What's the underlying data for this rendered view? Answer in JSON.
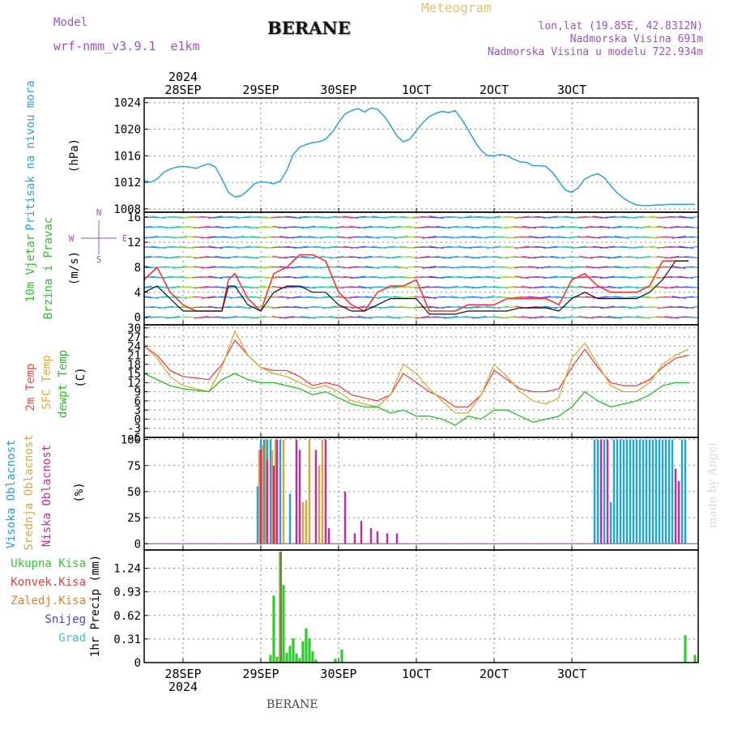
{
  "header": {
    "model_label": "Model",
    "model_name": "wrf-nmm_v3.9.1  e1km",
    "station": "BERANE",
    "product": "Meteogram",
    "lonlat": "lon,lat (19.85E, 42.8312N)",
    "elevation": "Nadmorska Visina 691m",
    "model_elevation": "Nadmorska Visina u modelu 722.934m",
    "credit": "made by Angel",
    "footer_station": "BERANE"
  },
  "colors": {
    "pressure": "#2aa3e4",
    "gust": "#ff3030",
    "wind_speed": "#111111",
    "t2m": "#ee4444",
    "tsfc": "#e0a838",
    "dewpt": "#22c422",
    "cloud_high": "#1ea1e6",
    "cloud_mid": "#d9a640",
    "cloud_low": "#cc2a9a",
    "rain_total": "#2ecc2e",
    "rain_conv": "#ee3a3a",
    "rain_strat": "#f07a2a",
    "snow": "#4444dd",
    "grad": "#33cccc"
  },
  "time_axis": {
    "top_year": "2024",
    "bottom_year": "2024",
    "ticks": [
      "28SEP",
      "29SEP",
      "30SEP",
      "1OCT",
      "2OCT",
      "3OCT"
    ]
  },
  "chart_data": [
    {
      "type": "line",
      "panel": "pressure",
      "ylabel": [
        "Pritisak na nivou mora",
        "(hPa)"
      ],
      "yticks": [
        1008,
        1012,
        1016,
        1020,
        1024
      ],
      "ylim": [
        1007.5,
        1024.7
      ],
      "x_unit": "hours from 27SEP 12UTC",
      "x": [
        0,
        2,
        4,
        6,
        8,
        10,
        12,
        14,
        16,
        18,
        20,
        22,
        24,
        26,
        28,
        30,
        32,
        34,
        36,
        38,
        40,
        42,
        44,
        46,
        48,
        50,
        52,
        54,
        56,
        58,
        60,
        62,
        64,
        66,
        68,
        70,
        72,
        74,
        76,
        78,
        80,
        82,
        84,
        86,
        88,
        90,
        92,
        94,
        96,
        98,
        100,
        102,
        104,
        106,
        108,
        110,
        112,
        114,
        116,
        118,
        120,
        122,
        124,
        126,
        128,
        130,
        132,
        134,
        136,
        138,
        140,
        142,
        144,
        146,
        148,
        150,
        152,
        154,
        156,
        158,
        160,
        162,
        164,
        166,
        168,
        170
      ],
      "series": [
        {
          "values": [
            1012.3,
            1012.0,
            1012.5,
            1013.5,
            1014.0,
            1014.3,
            1014.4,
            1014.3,
            1014.1,
            1014.5,
            1014.8,
            1014.3,
            1012.5,
            1010.5,
            1009.8,
            1010.0,
            1010.8,
            1011.8,
            1012.1,
            1012.0,
            1011.8,
            1012.2,
            1013.8,
            1016.2,
            1017.3,
            1017.7,
            1018.0,
            1018.1,
            1018.5,
            1019.5,
            1021.0,
            1022.3,
            1022.8,
            1023.1,
            1022.6,
            1023.2,
            1023.0,
            1022.0,
            1020.6,
            1019.0,
            1018.1,
            1018.5,
            1019.8,
            1021.0,
            1021.9,
            1022.4,
            1022.7,
            1022.5,
            1022.8,
            1021.5,
            1019.9,
            1018.2,
            1016.8,
            1016.0,
            1016.0,
            1016.2,
            1016.0,
            1015.5,
            1015.1,
            1015.0,
            1014.5,
            1014.5,
            1014.4,
            1013.5,
            1012.2,
            1010.8,
            1010.5,
            1011.2,
            1012.5,
            1013.0,
            1013.3,
            1012.7,
            1011.5,
            1010.4,
            1009.6,
            1009.0,
            1008.6,
            1008.5,
            1008.5,
            1008.6,
            1008.6,
            1008.7,
            1008.7,
            1008.7,
            1008.7,
            1008.7
          ]
        }
      ]
    },
    {
      "type": "line",
      "panel": "wind",
      "ylabel": [
        "10m Vjetar",
        "Brzina i Pravac",
        "(m/s)"
      ],
      "compass": [
        "N",
        "W",
        "E",
        "S"
      ],
      "yticks": [
        0,
        4,
        8,
        12,
        16
      ],
      "ylim": [
        -1.2,
        16.8
      ],
      "x": [
        0,
        4,
        8,
        12,
        16,
        20,
        24,
        26,
        28,
        32,
        36,
        40,
        44,
        48,
        52,
        56,
        60,
        64,
        68,
        72,
        76,
        80,
        84,
        88,
        92,
        96,
        100,
        104,
        108,
        112,
        116,
        120,
        124,
        128,
        132,
        136,
        140,
        144,
        148,
        152,
        156,
        160,
        164,
        168
      ],
      "series": [
        {
          "name": "gust",
          "values": [
            6,
            8,
            4,
            2,
            1,
            1,
            1,
            6,
            7,
            3,
            1,
            7,
            8,
            10,
            10,
            9,
            4,
            2,
            1,
            4,
            5,
            5,
            6,
            1,
            1,
            1,
            2,
            2,
            2,
            3,
            3,
            3,
            3,
            2,
            6,
            7,
            5,
            4,
            4,
            4,
            5,
            9,
            9,
            9
          ]
        },
        {
          "name": "speed",
          "values": [
            4,
            5,
            3,
            1,
            1,
            1,
            1,
            5,
            5,
            2,
            1,
            4,
            5,
            5,
            4,
            4,
            2,
            1,
            1,
            2,
            3,
            3,
            3,
            0.5,
            0.5,
            0.5,
            1,
            1,
            1,
            1,
            1.5,
            1.5,
            1.5,
            1,
            3,
            4,
            3,
            3,
            3,
            3,
            4,
            6,
            9,
            9
          ]
        }
      ]
    },
    {
      "type": "line",
      "panel": "temperature",
      "ylabel": [
        "2m Temp",
        "SFC Temp",
        "dewpt Temp",
        "(C)"
      ],
      "yticks": [
        -6,
        -3,
        0,
        3,
        6,
        9,
        12,
        15,
        18,
        21,
        24,
        27,
        30
      ],
      "ylim": [
        -6,
        31
      ],
      "x": [
        0,
        4,
        8,
        12,
        16,
        20,
        24,
        28,
        32,
        36,
        40,
        44,
        48,
        52,
        56,
        60,
        64,
        68,
        72,
        76,
        80,
        84,
        88,
        92,
        96,
        100,
        104,
        108,
        112,
        116,
        120,
        124,
        128,
        132,
        136,
        140,
        144,
        148,
        152,
        156,
        160,
        164,
        168
      ],
      "series": [
        {
          "name": "2m Temp",
          "values": [
            24,
            21,
            16,
            14,
            13.5,
            13,
            18,
            26,
            21,
            17,
            16,
            16,
            14,
            11,
            12,
            11,
            8,
            7,
            6,
            8,
            15,
            12,
            9,
            7,
            4,
            4,
            8,
            16,
            13,
            10,
            9,
            9,
            10,
            17,
            23,
            17,
            12,
            11,
            11,
            13,
            17,
            20,
            21
          ]
        },
        {
          "name": "SFC Temp",
          "values": [
            24,
            20,
            14,
            11,
            10,
            9,
            17,
            29,
            21,
            17,
            15,
            14,
            12,
            10,
            11,
            9,
            6,
            5,
            4,
            8,
            18,
            15,
            10,
            6,
            2,
            2,
            8,
            18,
            14,
            9,
            6,
            5,
            7,
            20,
            25,
            18,
            11,
            9,
            9,
            12,
            18,
            21,
            23
          ]
        },
        {
          "name": "dewpt Temp",
          "values": [
            15,
            13,
            11,
            10,
            9.5,
            9,
            13,
            15,
            13,
            12,
            12,
            11,
            10,
            8,
            9,
            7,
            5,
            4,
            4,
            2,
            3,
            1,
            1,
            0,
            -2,
            1,
            0,
            3,
            3,
            1,
            -1,
            0,
            1,
            4,
            9,
            6,
            4,
            5,
            6,
            8,
            11,
            12,
            12
          ]
        }
      ]
    },
    {
      "type": "bar",
      "panel": "clouds",
      "ylabel": [
        "Visoka Oblacnost",
        "Srednja Oblacnost",
        "Niska Oblacnost",
        "(%)"
      ],
      "yticks": [
        0,
        25,
        50,
        75,
        100
      ],
      "ylim": [
        -6,
        102
      ],
      "series": [
        {
          "name": "Visoka Oblacnost",
          "x": [
            35,
            36,
            37,
            38,
            39,
            41,
            42,
            45,
            139,
            140,
            141,
            142,
            144,
            145,
            146,
            147,
            148,
            149,
            150,
            151,
            152,
            153,
            154,
            155,
            156,
            157,
            158,
            159,
            160,
            161,
            162,
            163,
            166,
            167
          ],
          "values": [
            55,
            100,
            100,
            100,
            100,
            100,
            100,
            48,
            100,
            100,
            100,
            100,
            40,
            100,
            100,
            100,
            100,
            100,
            100,
            100,
            100,
            100,
            100,
            100,
            100,
            100,
            100,
            100,
            100,
            100,
            100,
            100,
            100,
            100
          ]
        },
        {
          "name": "Srednja Oblacnost",
          "x": [
            35.5,
            36.5,
            37.5,
            39.5,
            40.5,
            43,
            49,
            50,
            51,
            54,
            55
          ],
          "values": [
            90,
            95,
            100,
            90,
            100,
            100,
            40,
            42,
            100,
            75,
            100
          ]
        },
        {
          "name": "Niska Oblacnost",
          "x": [
            36,
            38,
            40,
            41,
            47,
            48,
            53,
            56,
            57,
            62,
            65,
            67,
            70,
            72,
            75,
            78,
            141,
            143,
            164,
            165
          ],
          "values": [
            90,
            80,
            75,
            100,
            100,
            90,
            90,
            100,
            15,
            50,
            10,
            22,
            15,
            12,
            10,
            10,
            100,
            100,
            72,
            60
          ]
        }
      ]
    },
    {
      "type": "bar",
      "panel": "precip",
      "ylabel": [
        "1hr Precip (mm)"
      ],
      "legend": [
        "Ukupna Kisa",
        "Konvek.Kisa",
        "Zaledj.Kisa",
        "Snijeg",
        "Grad"
      ],
      "yticks": [
        0,
        0.31,
        0.62,
        0.93,
        1.24
      ],
      "ylim": [
        0,
        1.48
      ],
      "series": [
        {
          "name": "Ukupna Kisa",
          "x": [
            39,
            40,
            41,
            42,
            43,
            44,
            45,
            46,
            47,
            48,
            49,
            50,
            51,
            52,
            53,
            59,
            61,
            167,
            170
          ],
          "values": [
            0.1,
            0.88,
            0.08,
            1.46,
            1.02,
            0.13,
            0.22,
            0.32,
            0.12,
            0.06,
            0.28,
            0.45,
            0.32,
            0.15,
            0.04,
            0.05,
            0.17,
            0.36,
            0.1
          ]
        },
        {
          "name": "Konvek.Kisa",
          "x": [
            42.5
          ],
          "values": [
            1.46
          ]
        }
      ]
    }
  ]
}
